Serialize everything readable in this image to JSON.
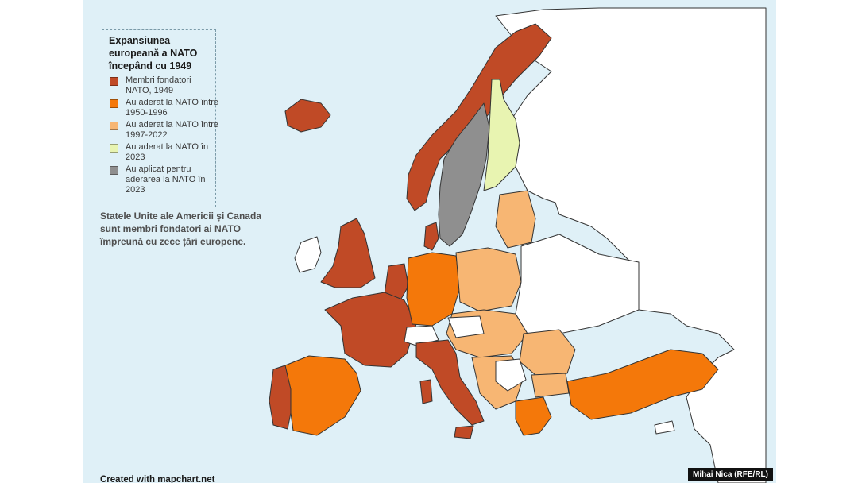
{
  "legend": {
    "title": "Expansiunea europeană a NATO începând cu 1949",
    "items": [
      {
        "label": "Membri fondatori NATO, 1949",
        "color": "#c04a26"
      },
      {
        "label": "Au aderat la NATO între 1950-1996",
        "color": "#f4780a"
      },
      {
        "label": "Au aderat la NATO între 1997-2022",
        "color": "#f7b673"
      },
      {
        "label": "Au aderat la NATO în 2023",
        "color": "#e8f4b1"
      },
      {
        "label": "Au aplicat pentru aderarea la NATO în 2023",
        "color": "#8f8f8f"
      }
    ]
  },
  "note": "Statele Unite ale Americii și Canada sunt membri fondatori ai NATO împreună cu zece țări europene.",
  "credits": {
    "left": "Created with mapchart.net",
    "right": "Mihai Nica (RFE/RL)"
  },
  "colors": {
    "sea": "#dff0f7",
    "non_member": "#ffffff",
    "border": "#333333"
  }
}
